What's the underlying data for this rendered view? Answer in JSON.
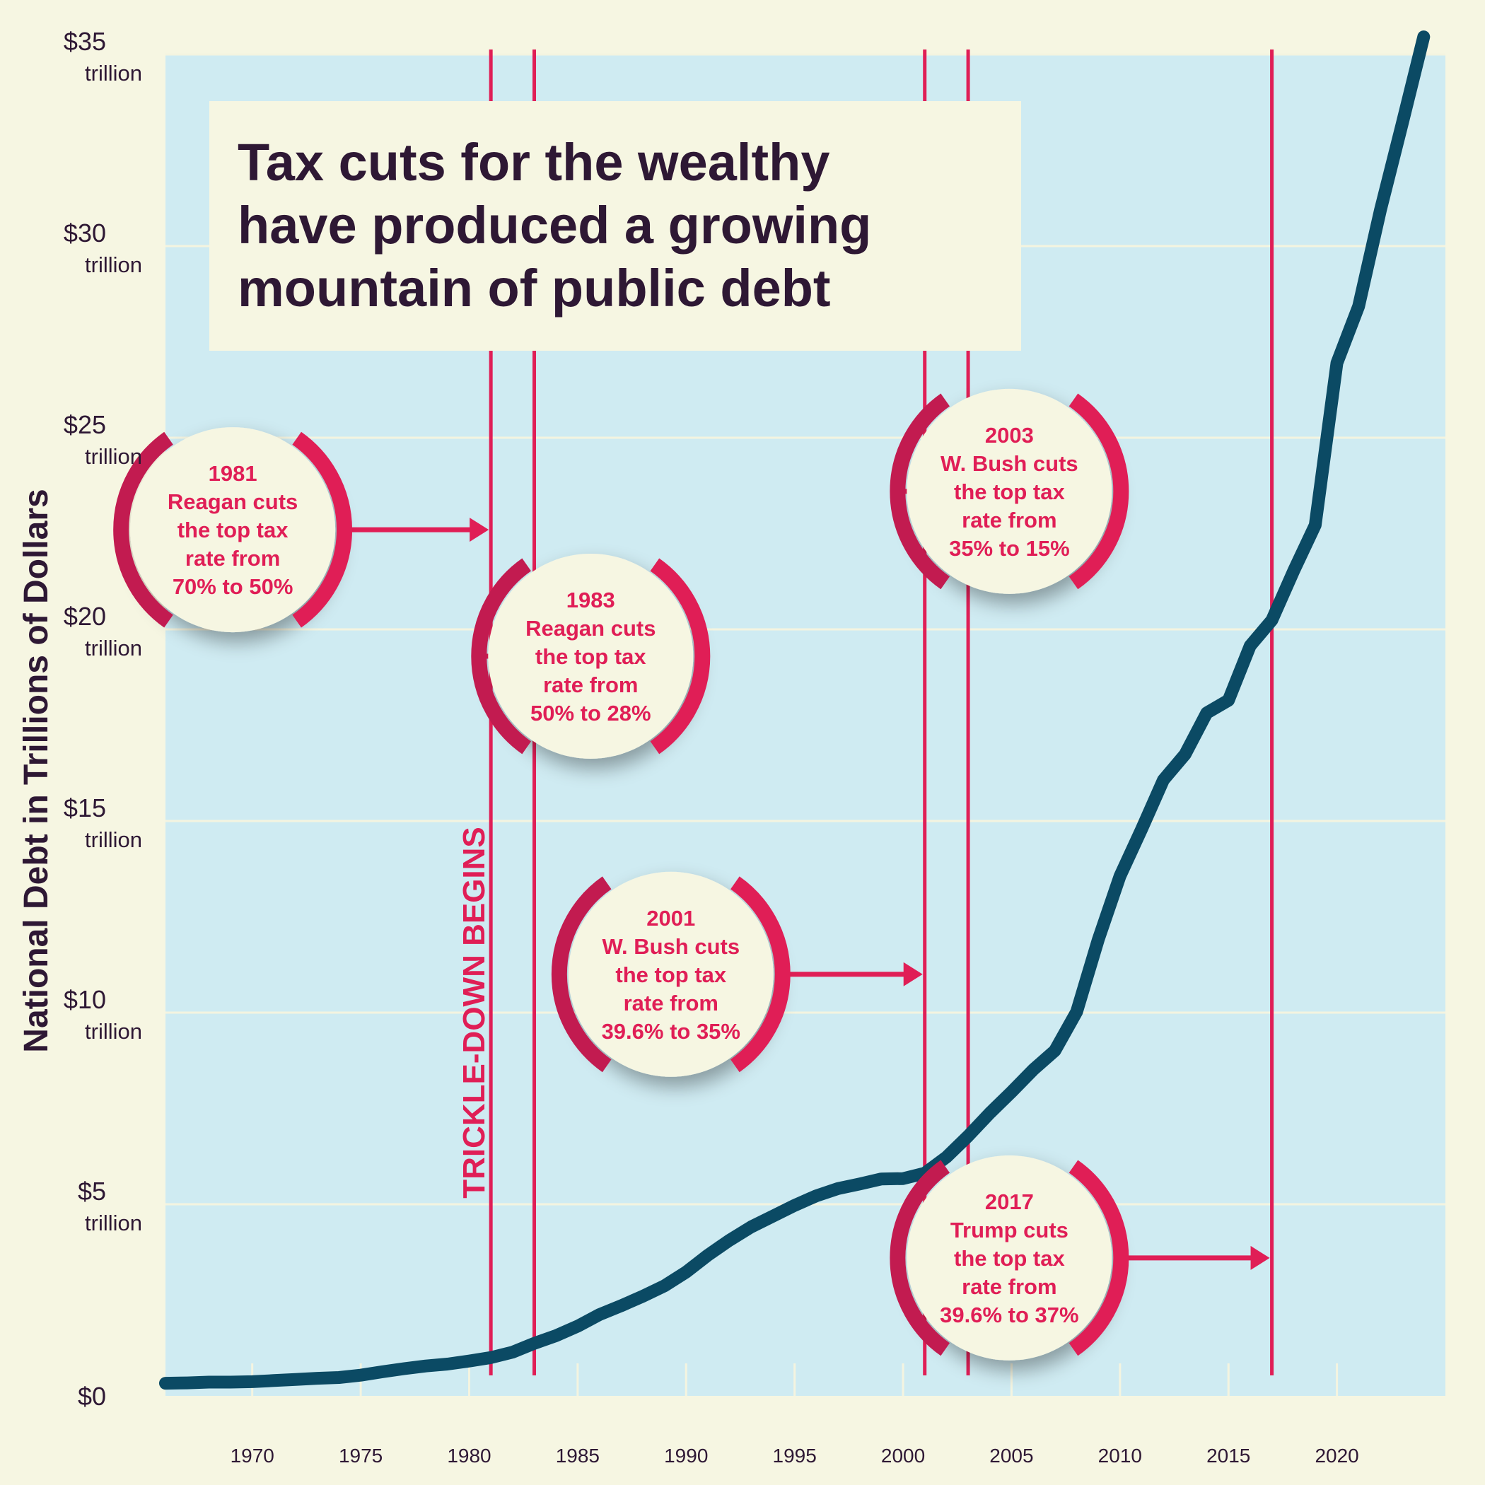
{
  "chart_data": {
    "type": "line",
    "title_lines": [
      "Tax cuts for the wealthy",
      "have produced a growing",
      "mountain of public debt"
    ],
    "ylabel": "National Debt in Trillions of Dollars",
    "xlim": [
      1966,
      2025
    ],
    "ylim": [
      0,
      35
    ],
    "grid": true,
    "y_ticks": [
      {
        "value": 0,
        "label": "$0",
        "sub": ""
      },
      {
        "value": 5,
        "label": "$5",
        "sub": "trillion"
      },
      {
        "value": 10,
        "label": "$10",
        "sub": "trillion"
      },
      {
        "value": 15,
        "label": "$15",
        "sub": "trillion"
      },
      {
        "value": 20,
        "label": "$20",
        "sub": "trillion"
      },
      {
        "value": 25,
        "label": "$25",
        "sub": "trillion"
      },
      {
        "value": 30,
        "label": "$30",
        "sub": "trillion"
      },
      {
        "value": 35,
        "label": "$35",
        "sub": "trillion"
      }
    ],
    "x_ticks": [
      1970,
      1975,
      1980,
      1985,
      1990,
      1995,
      2000,
      2005,
      2010,
      2015,
      2020
    ],
    "series": [
      {
        "color": "#0b4a64",
        "x": [
          1966,
          1967,
          1968,
          1969,
          1970,
          1971,
          1972,
          1973,
          1974,
          1975,
          1976,
          1977,
          1978,
          1979,
          1980,
          1981,
          1982,
          1983,
          1984,
          1985,
          1986,
          1987,
          1988,
          1989,
          1990,
          1991,
          1992,
          1993,
          1994,
          1995,
          1996,
          1997,
          1998,
          1999,
          2000,
          2001,
          2002,
          2003,
          2004,
          2005,
          2006,
          2007,
          2008,
          2009,
          2010,
          2011,
          2012,
          2013,
          2014,
          2015,
          2016,
          2017,
          2018,
          2019,
          2020,
          2021,
          2022,
          2023,
          2024
        ],
        "values": [
          0.33,
          0.34,
          0.36,
          0.36,
          0.37,
          0.4,
          0.43,
          0.46,
          0.48,
          0.54,
          0.63,
          0.71,
          0.78,
          0.83,
          0.91,
          1.0,
          1.14,
          1.37,
          1.57,
          1.82,
          2.12,
          2.35,
          2.6,
          2.87,
          3.23,
          3.67,
          4.06,
          4.41,
          4.69,
          4.97,
          5.22,
          5.41,
          5.53,
          5.66,
          5.67,
          5.81,
          6.23,
          6.78,
          7.38,
          7.93,
          8.51,
          9.01,
          10.02,
          11.91,
          13.56,
          14.79,
          16.07,
          16.74,
          17.82,
          18.15,
          19.57,
          20.24,
          21.52,
          22.72,
          26.95,
          28.43,
          30.93,
          33.17,
          35.46
        ]
      }
    ],
    "cut_lines": [
      1981,
      1983,
      2001,
      2003,
      2017
    ],
    "vertical_label": {
      "text": "TRICKLE-DOWN BEGINS",
      "x": 1980.7,
      "y": 10
    },
    "annotations": [
      {
        "cx": 1969.1,
        "cy": 22.6,
        "arrow": "right",
        "target_x": 1981,
        "target_y": 22.6,
        "lines": [
          "1981",
          "Reagan cuts",
          "the top tax",
          "rate from",
          "70% to 50%"
        ]
      },
      {
        "cx": 1985.6,
        "cy": 19.3,
        "arrow": "left",
        "target_x": 1983,
        "target_y": 19.3,
        "lines": [
          "1983",
          "Reagan cuts",
          "the top tax",
          "rate from",
          "50% to 28%"
        ]
      },
      {
        "cx": 2004.9,
        "cy": 23.6,
        "arrow": "left",
        "target_x": 2003,
        "target_y": 23.6,
        "lines": [
          "2003",
          "W. Bush cuts",
          "the top tax",
          "rate from",
          "35% to 15%"
        ]
      },
      {
        "cx": 1989.3,
        "cy": 11.0,
        "arrow": "right",
        "target_x": 2001,
        "target_y": 11.0,
        "lines": [
          "2001",
          "W. Bush cuts",
          "the top tax",
          "rate from",
          "39.6% to 35%"
        ]
      },
      {
        "cx": 2004.9,
        "cy": 3.6,
        "arrow": "right",
        "target_x": 2017,
        "target_y": 3.6,
        "lines": [
          "2017",
          "Trump cuts",
          "the top tax",
          "rate from",
          "39.6% to 37%"
        ]
      }
    ],
    "colors": {
      "page_bg": "#f6f6e2",
      "plot_bg": "#cfebf2",
      "grid": "#f4f4e0",
      "cut_line": "#e01e56",
      "bubble": "#f6f6e2",
      "bracket": "#c21b50",
      "text_dark": "#2e1834"
    }
  }
}
